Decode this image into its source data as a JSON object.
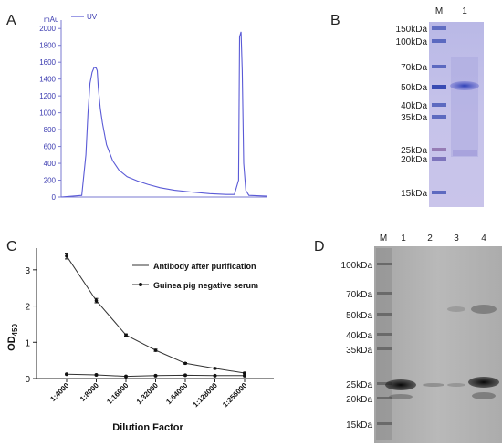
{
  "panels": {
    "A": "A",
    "B": "B",
    "C": "C",
    "D": "D"
  },
  "chart_data": [
    {
      "panel": "A",
      "type": "line",
      "y_unit": "mAu",
      "legend": [
        "UV"
      ],
      "yticks": [
        0,
        200,
        400,
        600,
        800,
        1000,
        1200,
        1400,
        1600,
        1800,
        2000
      ],
      "ylim": [
        0,
        2100
      ],
      "series": [
        {
          "name": "UV",
          "color": "#5a5ad6",
          "x": [
            0,
            0.1,
            0.12,
            0.13,
            0.14,
            0.15,
            0.16,
            0.17,
            0.175,
            0.18,
            0.19,
            0.2,
            0.22,
            0.25,
            0.28,
            0.32,
            0.37,
            0.42,
            0.48,
            0.55,
            0.63,
            0.72,
            0.8,
            0.84,
            0.86,
            0.865,
            0.872,
            0.878,
            0.885,
            0.895,
            0.91,
            1.0
          ],
          "y": [
            0,
            20,
            500,
            1000,
            1350,
            1480,
            1540,
            1530,
            1500,
            1300,
            1050,
            880,
            620,
            430,
            320,
            240,
            190,
            150,
            110,
            80,
            60,
            40,
            30,
            30,
            200,
            1900,
            1960,
            1500,
            400,
            80,
            20,
            10
          ]
        }
      ]
    },
    {
      "panel": "C",
      "type": "line",
      "ylabel": "OD",
      "ylabel_sub": "450",
      "xlabel": "Dilution Factor",
      "categories": [
        "1:4000",
        "1:8000",
        "1:16000",
        "1:32000",
        "1:64000",
        "1:128000",
        "1:256000"
      ],
      "yticks": [
        0,
        1,
        2,
        3
      ],
      "ylim": [
        0,
        3.6
      ],
      "legend_position": "top-right",
      "series": [
        {
          "name": "Antibody after purification",
          "values": [
            3.38,
            2.15,
            1.2,
            0.78,
            0.42,
            0.28,
            0.15
          ],
          "errors": [
            0.08,
            0.06,
            0.03,
            0.03,
            0.02,
            0.02,
            0.02
          ]
        },
        {
          "name": "Guinea pig negative serum",
          "values": [
            0.12,
            0.1,
            0.06,
            0.08,
            0.09,
            0.08,
            0.08
          ],
          "errors": [
            0,
            0,
            0,
            0,
            0,
            0,
            0
          ]
        }
      ]
    }
  ],
  "gels": [
    {
      "panel": "B",
      "lanes": [
        "M",
        "1"
      ],
      "markers": [
        "150kDa",
        "100kDa",
        "70kDa",
        "50kDa",
        "40kDa",
        "35kDa",
        "25kDa",
        "20kDa",
        "15kDa"
      ]
    },
    {
      "panel": "D",
      "lanes": [
        "M",
        "1",
        "2",
        "3",
        "4"
      ],
      "markers": [
        "100kDa",
        "70kDa",
        "50kDa",
        "40kDa",
        "35kDa",
        "25kDa",
        "20kDa",
        "15kDa"
      ]
    }
  ]
}
